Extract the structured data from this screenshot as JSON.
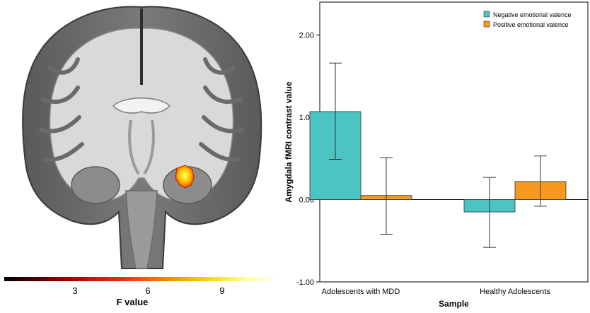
{
  "brain_figure": {
    "colorbar_ticks": [
      "3",
      "6",
      "9"
    ],
    "colorbar_label": "F value",
    "colormap": [
      "#000000",
      "#8b0000",
      "#e83a10",
      "#f5c400",
      "#ffff99",
      "#ffffff"
    ]
  },
  "chart_data": {
    "type": "bar",
    "title": "",
    "xlabel": "Sample",
    "ylabel": "Amygdala fMRI contrast value",
    "categories": [
      "Adolescents with MDD",
      "Healthy Adolescents"
    ],
    "series": [
      {
        "name": "Negative emotional valence",
        "color": "#4cc4c4",
        "values": [
          1.07,
          -0.15
        ],
        "err_low": [
          0.49,
          -0.58
        ],
        "err_high": [
          1.66,
          0.27
        ]
      },
      {
        "name": "Positive emotional valence",
        "color": "#f7991f",
        "values": [
          0.05,
          0.22
        ],
        "err_low": [
          -0.42,
          -0.08
        ],
        "err_high": [
          0.51,
          0.53
        ]
      }
    ],
    "ylim": [
      -1.0,
      2.4
    ],
    "yticks": [
      -1.0,
      0.0,
      1.0,
      2.0
    ],
    "ytick_labels": [
      "-1.00",
      "0.00",
      "1.00",
      "2.00"
    ],
    "legend_position": "top-right",
    "grid": false
  }
}
